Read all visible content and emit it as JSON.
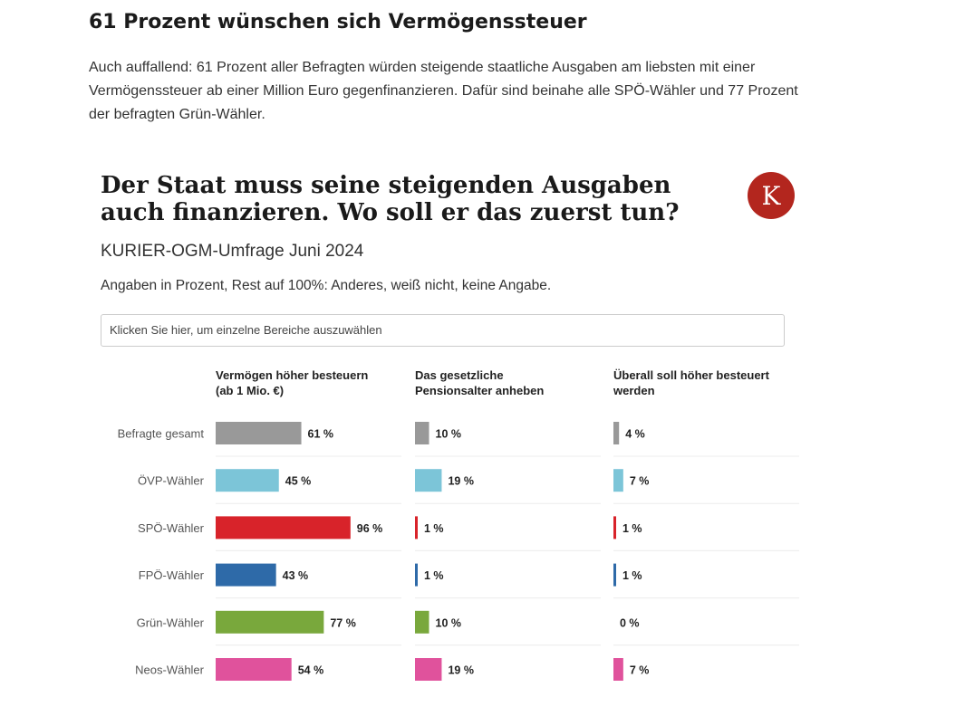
{
  "article": {
    "heading": "61 Prozent wünschen sich Vermögenssteuer",
    "body": "Auch auffallend: 61 Prozent aller Befragten würden steigende staatliche Ausgaben am liebsten mit einer Vermögenssteuer ab einer Million Euro gegenfinanzieren. Dafür sind beinahe alle SPÖ-Wähler und 77 Prozent der befragten Grün-Wähler."
  },
  "card": {
    "title": "Der Staat muss seine steigenden Ausgaben auch finanzieren. Wo soll er das zuerst tun?",
    "logo_letter": "K",
    "subtitle": "KURIER-OGM-Umfrage Juni 2024",
    "note": "Angaben in Prozent, Rest auf 100%: Anderes, weiß nicht, keine Angabe.",
    "selector_text": "Klicken Sie hier, um einzelne Bereiche auszuwählen"
  },
  "chart_data": {
    "type": "bar",
    "orientation": "horizontal",
    "unit": "%",
    "categories": [
      "Befragte gesamt",
      "ÖVP-Wähler",
      "SPÖ-Wähler",
      "FPÖ-Wähler",
      "Grün-Wähler",
      "Neos-Wähler"
    ],
    "category_colors": [
      "#999999",
      "#7cc5d8",
      "#d8232a",
      "#2e6aa8",
      "#79a83c",
      "#e0529c"
    ],
    "panels": [
      {
        "title_lines": [
          "Vermögen höher besteuern",
          "(ab 1 Mio. €)"
        ],
        "values": [
          61,
          45,
          96,
          43,
          77,
          54
        ]
      },
      {
        "title_lines": [
          "Das gesetzliche",
          "Pensionsalter anheben"
        ],
        "values": [
          10,
          19,
          1,
          1,
          10,
          19
        ]
      },
      {
        "title_lines": [
          "Überall soll höher besteuert",
          "werden"
        ],
        "values": [
          4,
          7,
          1,
          1,
          0,
          7
        ]
      }
    ],
    "xlim": [
      0,
      100
    ]
  }
}
